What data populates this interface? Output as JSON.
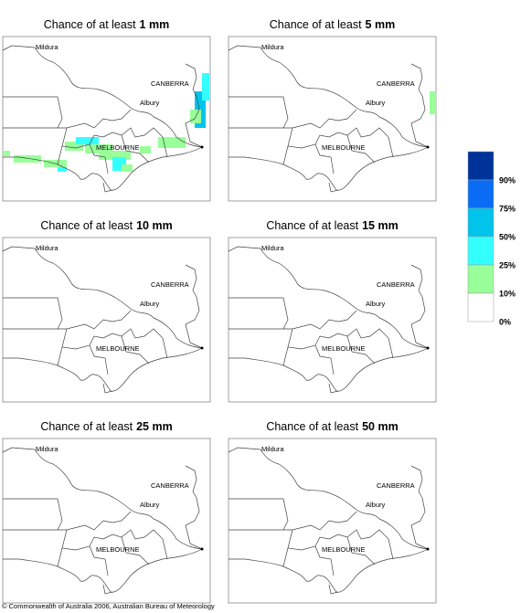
{
  "panels": [
    {
      "title_prefix": "Chance of at least",
      "title_amount": "1 mm"
    },
    {
      "title_prefix": "Chance of at least",
      "title_amount": "5 mm"
    },
    {
      "title_prefix": "Chance of at least",
      "title_amount": "10 mm"
    },
    {
      "title_prefix": "Chance of at least",
      "title_amount": "15 mm"
    },
    {
      "title_prefix": "Chance of at least",
      "title_amount": "25 mm"
    },
    {
      "title_prefix": "Chance of at least",
      "title_amount": "50 mm"
    }
  ],
  "places": [
    "Mildura",
    "CANBERRA",
    "Albury",
    "MELBOURNE"
  ],
  "legend": {
    "labels": [
      "90%",
      "75%",
      "50%",
      "25%",
      "10%",
      "0%"
    ],
    "colors": [
      "#00339a",
      "#0a6cf5",
      "#00c4ec",
      "#33ffff",
      "#99ff99",
      "#ffffff"
    ]
  },
  "footer": "© Commonwealth of Australia 2006, Australian Bureau of Meteorology"
}
